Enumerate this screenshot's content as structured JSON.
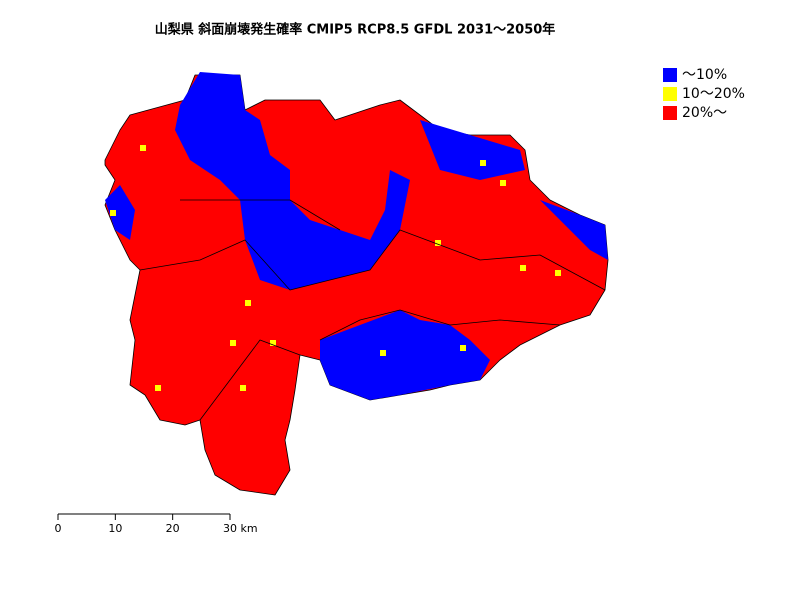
{
  "title": "山梨県 斜面崩壊発生確率 CMIP5 RCP8.5 GFDL 2031～2050年",
  "legend": [
    {
      "label": "～10%",
      "color": "#0000ff"
    },
    {
      "label": "10～20%",
      "color": "#ffff00"
    },
    {
      "label": "20%～",
      "color": "#ff0000"
    }
  ],
  "scale_bar": {
    "ticks": [
      0,
      10,
      20,
      {
        "value": 30,
        "label": "30 km"
      }
    ]
  }
}
